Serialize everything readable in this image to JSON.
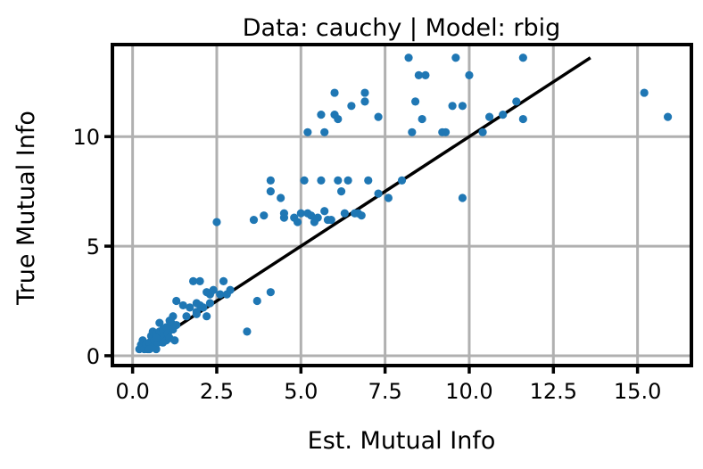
{
  "chart_data": {
    "type": "scatter",
    "title": "Data: cauchy | Model: rbig",
    "xlabel": "Est. Mutual Info",
    "ylabel": "True Mutual Info",
    "xlim": [
      -0.6,
      16.6
    ],
    "ylim": [
      -0.45,
      14.2
    ],
    "grid": true,
    "x_ticks": [
      0.0,
      2.5,
      5.0,
      7.5,
      10.0,
      12.5,
      15.0
    ],
    "x_tick_labels": [
      "0.0",
      "2.5",
      "5.0",
      "7.5",
      "10.0",
      "12.5",
      "15.0"
    ],
    "y_ticks": [
      0,
      5,
      10
    ],
    "y_tick_labels": [
      "0",
      "5",
      "10"
    ],
    "point_color": "#1f77b4",
    "reference_line": {
      "x": [
        0.2,
        13.6
      ],
      "y": [
        0.2,
        13.6
      ],
      "color": "#000000"
    },
    "points": [
      [
        0.2,
        0.3
      ],
      [
        0.25,
        0.5
      ],
      [
        0.3,
        0.7
      ],
      [
        0.35,
        0.3
      ],
      [
        0.4,
        0.5
      ],
      [
        0.45,
        0.3
      ],
      [
        0.5,
        0.6
      ],
      [
        0.55,
        0.9
      ],
      [
        0.6,
        1.1
      ],
      [
        0.6,
        0.4
      ],
      [
        0.65,
        0.7
      ],
      [
        0.7,
        0.3
      ],
      [
        0.7,
        1.0
      ],
      [
        0.75,
        0.6
      ],
      [
        0.8,
        1.1
      ],
      [
        0.85,
        0.8
      ],
      [
        0.9,
        0.6
      ],
      [
        0.9,
        1.2
      ],
      [
        0.95,
        0.9
      ],
      [
        1.0,
        0.7
      ],
      [
        1.0,
        1.3
      ],
      [
        1.05,
        1.0
      ],
      [
        1.1,
        1.6
      ],
      [
        1.1,
        0.8
      ],
      [
        1.15,
        1.5
      ],
      [
        1.2,
        1.2
      ],
      [
        1.25,
        0.7
      ],
      [
        1.3,
        1.4
      ],
      [
        1.3,
        2.5
      ],
      [
        0.8,
        1.5
      ],
      [
        0.7,
        0.8
      ],
      [
        0.5,
        0.3
      ],
      [
        1.2,
        1.8
      ],
      [
        1.5,
        2.3
      ],
      [
        1.6,
        1.8
      ],
      [
        1.7,
        2.2
      ],
      [
        1.8,
        3.4
      ],
      [
        1.9,
        2.4
      ],
      [
        1.9,
        2.0
      ],
      [
        2.0,
        3.4
      ],
      [
        2.0,
        2.3
      ],
      [
        2.1,
        2.2
      ],
      [
        2.2,
        2.9
      ],
      [
        2.2,
        1.8
      ],
      [
        2.3,
        2.8
      ],
      [
        2.4,
        3.0
      ],
      [
        2.5,
        6.1
      ],
      [
        2.6,
        2.8
      ],
      [
        2.7,
        3.4
      ],
      [
        2.8,
        2.8
      ],
      [
        2.9,
        3.0
      ],
      [
        2.3,
        2.4
      ],
      [
        1.9,
        1.9
      ],
      [
        3.4,
        1.1
      ],
      [
        3.6,
        6.2
      ],
      [
        3.7,
        2.5
      ],
      [
        3.9,
        6.4
      ],
      [
        4.1,
        8.0
      ],
      [
        4.1,
        7.5
      ],
      [
        4.1,
        2.9
      ],
      [
        4.4,
        7.2
      ],
      [
        4.5,
        6.3
      ],
      [
        4.5,
        6.5
      ],
      [
        4.8,
        6.3
      ],
      [
        4.9,
        6.1
      ],
      [
        5.0,
        6.5
      ],
      [
        5.1,
        8.0
      ],
      [
        5.2,
        10.2
      ],
      [
        5.2,
        6.5
      ],
      [
        5.3,
        6.4
      ],
      [
        5.4,
        6.1
      ],
      [
        5.5,
        6.3
      ],
      [
        5.6,
        8.0
      ],
      [
        5.7,
        6.6
      ],
      [
        5.7,
        10.2
      ],
      [
        5.6,
        11.0
      ],
      [
        5.8,
        6.2
      ],
      [
        5.9,
        6.2
      ],
      [
        6.0,
        12.0
      ],
      [
        6.0,
        11.0
      ],
      [
        6.1,
        10.8
      ],
      [
        6.1,
        8.0
      ],
      [
        6.2,
        7.5
      ],
      [
        6.3,
        6.5
      ],
      [
        6.4,
        8.0
      ],
      [
        6.5,
        11.4
      ],
      [
        6.6,
        6.5
      ],
      [
        6.7,
        6.5
      ],
      [
        6.8,
        6.4
      ],
      [
        6.9,
        12.0
      ],
      [
        6.9,
        11.6
      ],
      [
        7.0,
        8.0
      ],
      [
        7.3,
        10.9
      ],
      [
        7.3,
        7.4
      ],
      [
        7.6,
        7.2
      ],
      [
        8.0,
        8.0
      ],
      [
        8.2,
        13.6
      ],
      [
        8.3,
        10.2
      ],
      [
        8.4,
        11.6
      ],
      [
        8.5,
        12.8
      ],
      [
        8.6,
        10.8
      ],
      [
        8.7,
        12.8
      ],
      [
        9.2,
        10.2
      ],
      [
        9.3,
        10.2
      ],
      [
        9.5,
        11.4
      ],
      [
        9.6,
        13.6
      ],
      [
        9.8,
        11.4
      ],
      [
        9.8,
        7.2
      ],
      [
        10.0,
        12.8
      ],
      [
        10.4,
        10.2
      ],
      [
        10.6,
        10.9
      ],
      [
        11.0,
        11.0
      ],
      [
        11.4,
        11.6
      ],
      [
        11.6,
        13.6
      ],
      [
        11.6,
        10.8
      ],
      [
        15.2,
        12.0
      ],
      [
        15.9,
        10.9
      ]
    ]
  }
}
